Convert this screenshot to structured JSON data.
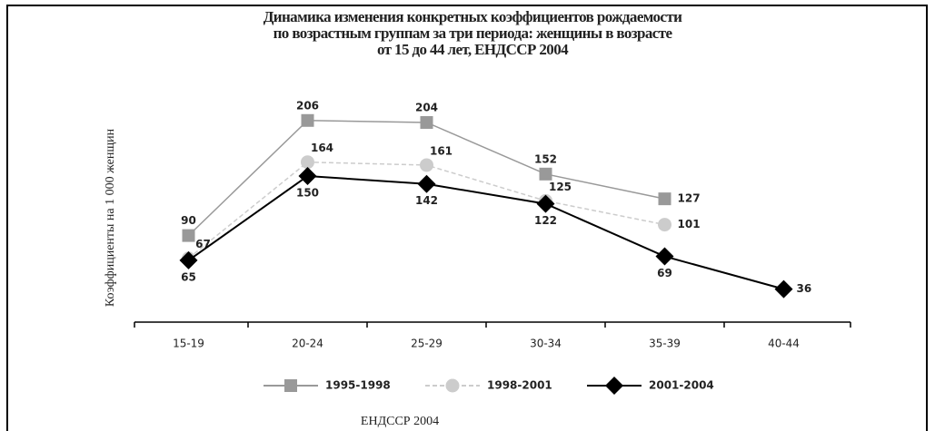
{
  "chart_data": {
    "type": "line",
    "title": [
      "Динамика изменения конкретных коэффициентов рождаемости",
      "по возрастным группам за три периода:  женщины в возрасте",
      "от 15 до 44 лет, ЕНДССР 2004"
    ],
    "y_label": "Коэффициенты на 1 000 женщин",
    "source": "ЕНДССР 2004",
    "categories": [
      "15-19",
      "20-24",
      "25-29",
      "30-34",
      "35-39",
      "40-44"
    ],
    "ylim": [
      0,
      225
    ],
    "series": [
      {
        "name": "1995-1998",
        "color": "#999999",
        "marker": "square",
        "dashed": false,
        "values": [
          90,
          206,
          204,
          152,
          127,
          null
        ]
      },
      {
        "name": "1998-2001",
        "color": "#cccccc",
        "marker": "circle",
        "dashed": true,
        "values": [
          67,
          164,
          161,
          125,
          101,
          null
        ]
      },
      {
        "name": "2001-2004",
        "color": "#000000",
        "marker": "diamond",
        "dashed": false,
        "values": [
          65,
          150,
          142,
          122,
          69,
          36
        ]
      }
    ]
  }
}
